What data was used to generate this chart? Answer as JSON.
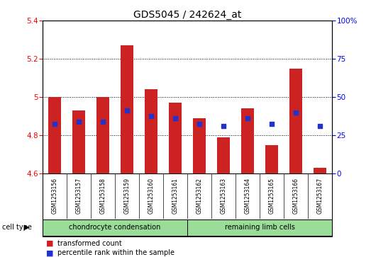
{
  "title": "GDS5045 / 242624_at",
  "samples": [
    "GSM1253156",
    "GSM1253157",
    "GSM1253158",
    "GSM1253159",
    "GSM1253160",
    "GSM1253161",
    "GSM1253162",
    "GSM1253163",
    "GSM1253164",
    "GSM1253165",
    "GSM1253166",
    "GSM1253167"
  ],
  "bar_values": [
    5.0,
    4.93,
    5.0,
    5.27,
    5.04,
    4.97,
    4.89,
    4.79,
    4.94,
    4.75,
    5.15,
    4.63
  ],
  "blue_values": [
    4.86,
    4.87,
    4.87,
    4.93,
    4.9,
    4.89,
    4.86,
    4.85,
    4.89,
    4.86,
    4.92,
    4.85
  ],
  "ylim_left": [
    4.6,
    5.4
  ],
  "ylim_right": [
    0,
    100
  ],
  "yticks_left": [
    4.6,
    4.8,
    5.0,
    5.2,
    5.4
  ],
  "yticks_right": [
    0,
    25,
    50,
    75,
    100
  ],
  "bar_bottom": 4.6,
  "bar_color": "#cc2222",
  "blue_color": "#2233cc",
  "group1_label": "chondrocyte condensation",
  "group2_label": "remaining limb cells",
  "group1_count": 6,
  "group2_count": 6,
  "legend_red": "transformed count",
  "legend_blue": "percentile rank within the sample",
  "cell_type_label": "cell type",
  "bar_width": 0.55,
  "group_bg": "#99dd99",
  "sample_bg": "#cccccc",
  "title_fontsize": 10,
  "tick_fontsize": 7.5,
  "label_fontsize": 7.5
}
